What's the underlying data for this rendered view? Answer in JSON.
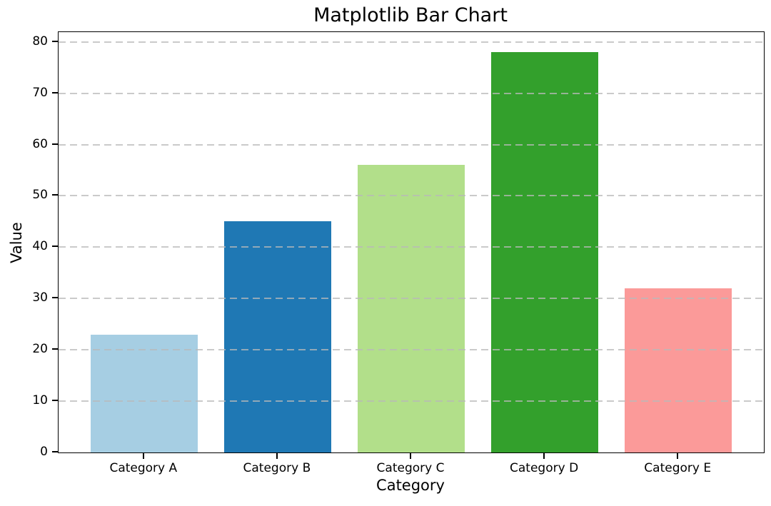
{
  "chart_data": {
    "type": "bar",
    "title": "Matplotlib Bar Chart",
    "xlabel": "Category",
    "ylabel": "Value",
    "categories": [
      "Category A",
      "Category B",
      "Category C",
      "Category D",
      "Category E"
    ],
    "values": [
      23,
      45,
      56,
      78,
      32
    ],
    "bar_colors": [
      "#a6cee3",
      "#1f78b4",
      "#b2df8a",
      "#33a02c",
      "#fb9a99"
    ],
    "bar_width": 0.8,
    "yticks": [
      0,
      10,
      20,
      30,
      40,
      50,
      60,
      70,
      80
    ],
    "ylim": [
      0,
      81.9
    ],
    "xlim": [
      -0.64,
      4.64
    ],
    "grid": {
      "axis": "y",
      "style": "dashed",
      "color": "#bdbdbd",
      "above_bars": true
    },
    "legend_position": "none",
    "background": "#ffffff",
    "spine_color": "#000000"
  }
}
